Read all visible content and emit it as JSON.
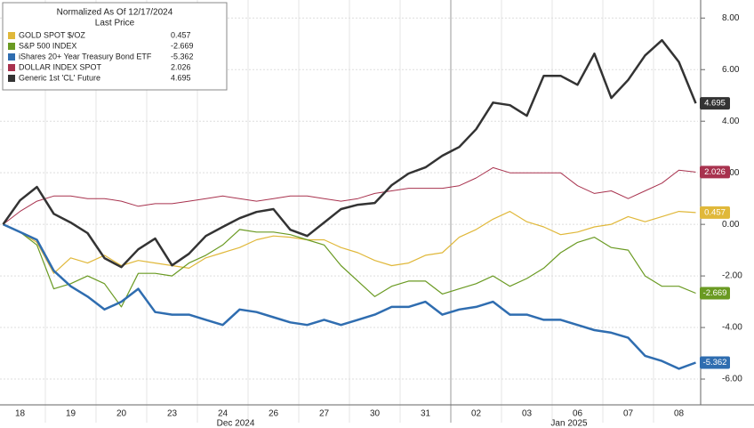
{
  "chart_data": {
    "type": "line",
    "legend_title": "Normalized As Of 12/17/2024",
    "legend_subtitle": "Last Price",
    "categories": [
      null,
      "18",
      null,
      null,
      "19",
      null,
      null,
      "20",
      null,
      null,
      "23",
      null,
      null,
      "24",
      null,
      null,
      "26",
      null,
      null,
      "27",
      null,
      null,
      "30",
      null,
      null,
      "31",
      null,
      null,
      "02",
      null,
      null,
      "03",
      null,
      null,
      "06",
      null,
      null,
      "07",
      null,
      null,
      "08",
      null
    ],
    "x_group_labels": [
      "Dec 2024",
      "Jan 2025"
    ],
    "ylim": [
      -7,
      8.7
    ],
    "yticks": [
      {
        "value": 8,
        "label": "8.00"
      },
      {
        "value": 6,
        "label": "6.00"
      },
      {
        "value": 4,
        "label": "4.00"
      },
      {
        "value": 2,
        "label": "2.00"
      },
      {
        "value": 0,
        "label": "0.00"
      },
      {
        "value": -2,
        "label": "-2.00"
      },
      {
        "value": -4,
        "label": "-4.00"
      },
      {
        "value": -6,
        "label": "-6.00"
      }
    ],
    "grid": true,
    "series": [
      {
        "name": "GOLD SPOT $/OZ",
        "color": "#e0b83a",
        "values": [
          0,
          -0.3,
          -0.7,
          -1.9,
          -1.3,
          -1.5,
          -1.2,
          -1.6,
          -1.4,
          -1.5,
          -1.6,
          -1.7,
          -1.3,
          -1.1,
          -0.9,
          -0.6,
          -0.45,
          -0.5,
          -0.6,
          -0.6,
          -0.9,
          -1.1,
          -1.4,
          -1.6,
          -1.5,
          -1.2,
          -1.1,
          -0.5,
          -0.2,
          0.2,
          0.5,
          0.1,
          -0.1,
          -0.4,
          -0.3,
          -0.1,
          0.0,
          0.3,
          0.1,
          0.3,
          0.5,
          0.457
        ]
      },
      {
        "name": "S&P 500 INDEX",
        "color": "#6a9a22",
        "values": [
          0,
          -0.3,
          -0.8,
          -2.5,
          -2.3,
          -2.0,
          -2.3,
          -3.2,
          -1.9,
          -1.9,
          -2.0,
          -1.5,
          -1.2,
          -0.8,
          -0.2,
          -0.3,
          -0.3,
          -0.4,
          -0.6,
          -0.8,
          -1.6,
          -2.2,
          -2.8,
          -2.4,
          -2.2,
          -2.2,
          -2.7,
          -2.5,
          -2.3,
          -2.0,
          -2.4,
          -2.1,
          -1.7,
          -1.1,
          -0.7,
          -0.5,
          -0.9,
          -1.0,
          -2.0,
          -2.4,
          -2.4,
          -2.669
        ]
      },
      {
        "name": "iShares 20+ Year Treasury Bond ETF",
        "color": "#2f6db0",
        "values": [
          0,
          -0.3,
          -0.6,
          -1.8,
          -2.4,
          -2.8,
          -3.3,
          -3.0,
          -2.5,
          -3.4,
          -3.5,
          -3.5,
          -3.7,
          -3.9,
          -3.3,
          -3.4,
          -3.6,
          -3.8,
          -3.9,
          -3.7,
          -3.9,
          -3.7,
          -3.5,
          -3.2,
          -3.2,
          -3.0,
          -3.5,
          -3.3,
          -3.2,
          -3.0,
          -3.5,
          -3.5,
          -3.7,
          -3.7,
          -3.9,
          -4.1,
          -4.2,
          -4.4,
          -5.1,
          -5.3,
          -5.6,
          -5.362
        ]
      },
      {
        "name": "DOLLAR INDEX SPOT",
        "color": "#a8324e",
        "values": [
          0,
          0.5,
          0.9,
          1.1,
          1.1,
          1.0,
          1.0,
          0.9,
          0.7,
          0.8,
          0.8,
          0.9,
          1.0,
          1.1,
          1.0,
          0.9,
          1.0,
          1.1,
          1.1,
          1.0,
          0.9,
          1.0,
          1.2,
          1.3,
          1.4,
          1.4,
          1.4,
          1.5,
          1.8,
          2.2,
          2.0,
          2.0,
          2.0,
          2.0,
          1.5,
          1.2,
          1.3,
          1.0,
          1.3,
          1.6,
          2.1,
          2.026
        ]
      },
      {
        "name": "Generic 1st 'CL' Future",
        "color": "#333333",
        "values": [
          0,
          0.93,
          1.45,
          0.41,
          0.07,
          -0.34,
          -1.31,
          -1.66,
          -0.97,
          -0.55,
          -1.59,
          -1.14,
          -0.45,
          -0.1,
          0.24,
          0.48,
          0.59,
          -0.21,
          -0.45,
          0.07,
          0.59,
          0.76,
          0.83,
          1.52,
          1.97,
          2.21,
          2.66,
          3.0,
          3.69,
          4.72,
          4.62,
          4.21,
          5.76,
          5.76,
          5.41,
          6.62,
          4.9,
          5.6,
          6.55,
          7.14,
          6.3,
          4.695
        ]
      }
    ]
  }
}
